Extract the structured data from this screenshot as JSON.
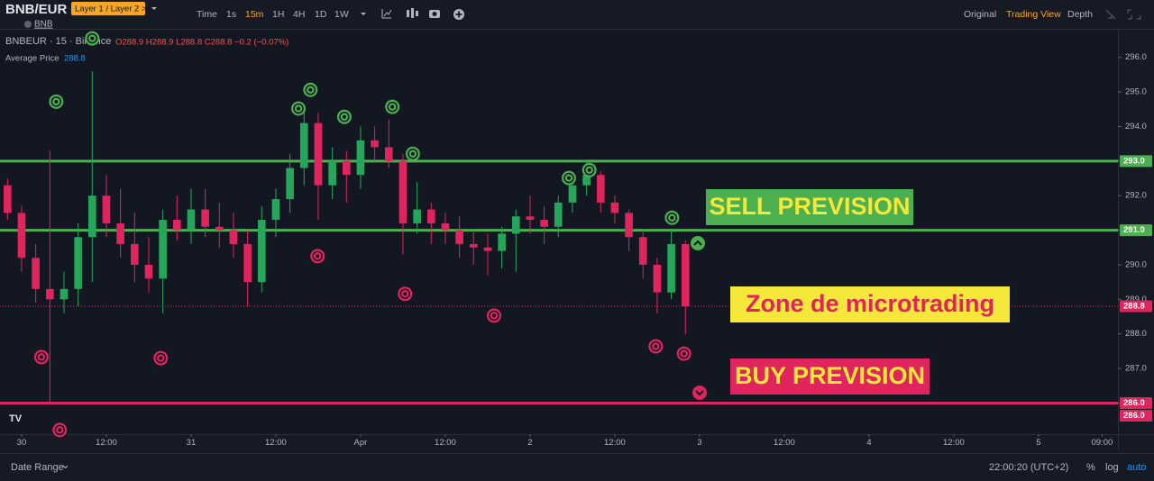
{
  "ui": {
    "symbol": "BNB/EUR",
    "layer": "Layer 1 / Layer 2 >",
    "timeframes": [
      "Time",
      "1s",
      "15m",
      "1H",
      "4H",
      "1D",
      "1W"
    ],
    "views": [
      "Original",
      "Trading View",
      "Depth"
    ],
    "legend": {
      "base": "BNB",
      "pair": "BNBEUR · 15 · Binance",
      "ohlc": "O288.9 H288.9 L288.8 C288.8 −0.2 (−0.07%)",
      "avg_label": "Average Price",
      "avg_value": "288.8"
    },
    "bottom": {
      "range": "Date Range",
      "clock": "22:00:20 (UTC+2)",
      "percent": "%",
      "log": "log",
      "auto": "auto"
    }
  },
  "chart_data": {
    "type": "candlestick",
    "up_color": "#26a65b",
    "down_color": "#e0245e",
    "x": [
      -2,
      0,
      2,
      4,
      6,
      8,
      10,
      12,
      14,
      16,
      18,
      20,
      22,
      24,
      26,
      28,
      30,
      32,
      34,
      36,
      38,
      40,
      42,
      44,
      46,
      48,
      50,
      52,
      54,
      56,
      58,
      60,
      62,
      64,
      66,
      68,
      70,
      72,
      74,
      76,
      78,
      80,
      82,
      84,
      86,
      88,
      90,
      92,
      94
    ],
    "open": [
      292.3,
      291.5,
      290.2,
      289.3,
      289.0,
      289.3,
      290.8,
      292.0,
      291.2,
      290.6,
      290.0,
      289.6,
      291.3,
      291.0,
      291.6,
      291.1,
      291.0,
      290.6,
      289.5,
      291.3,
      291.9,
      292.8,
      294.1,
      292.3,
      293.0,
      292.6,
      293.6,
      293.4,
      293.0,
      291.2,
      291.6,
      291.2,
      291.0,
      290.6,
      290.5,
      290.4,
      290.9,
      291.4,
      291.3,
      291.1,
      291.8,
      292.3,
      292.6,
      291.8,
      291.5,
      290.8,
      290.0,
      289.2,
      290.6
    ],
    "high": [
      292.5,
      291.7,
      290.6,
      293.3,
      289.8,
      291.2,
      295.6,
      292.6,
      292.2,
      291.5,
      290.8,
      291.6,
      292.0,
      292.2,
      292.2,
      291.8,
      291.5,
      291.0,
      291.7,
      292.2,
      293.2,
      294.6,
      294.4,
      293.4,
      293.3,
      294.0,
      294.0,
      294.2,
      293.2,
      292.4,
      291.8,
      291.5,
      291.4,
      291.0,
      290.9,
      291.1,
      291.6,
      292.0,
      291.7,
      292.0,
      292.6,
      293.0,
      292.7,
      292.0,
      291.6,
      291.0,
      290.2,
      291.0,
      290.7
    ],
    "low": [
      291.3,
      289.8,
      288.9,
      286.0,
      288.6,
      288.8,
      289.5,
      290.8,
      290.2,
      289.5,
      289.2,
      288.6,
      290.7,
      290.6,
      290.8,
      290.5,
      290.2,
      288.8,
      289.2,
      290.8,
      291.5,
      292.3,
      291.3,
      291.9,
      291.8,
      292.2,
      293.0,
      292.8,
      290.3,
      290.9,
      290.6,
      290.6,
      290.2,
      290.0,
      289.7,
      289.9,
      289.8,
      290.9,
      290.6,
      290.8,
      291.5,
      292.0,
      291.5,
      291.2,
      290.4,
      289.6,
      288.6,
      289.0,
      288.0
    ],
    "close": [
      291.5,
      290.2,
      289.3,
      289.0,
      289.3,
      290.8,
      292.0,
      291.2,
      290.6,
      290.0,
      289.6,
      291.3,
      291.0,
      291.6,
      291.1,
      291.0,
      290.6,
      289.5,
      291.3,
      291.9,
      292.8,
      294.1,
      292.3,
      293.0,
      292.6,
      293.6,
      293.4,
      293.0,
      291.2,
      291.6,
      291.2,
      291.0,
      290.6,
      290.5,
      290.4,
      290.9,
      291.4,
      291.3,
      291.1,
      291.8,
      292.3,
      292.6,
      291.8,
      291.5,
      290.8,
      290.0,
      289.2,
      290.6,
      288.8
    ],
    "xlim": [
      -3.06,
      155.25
    ],
    "ylim": [
      285.1,
      296.8
    ],
    "xticks": [
      {
        "value": 0,
        "label": "30"
      },
      {
        "value": 12,
        "label": "12:00"
      },
      {
        "value": 24,
        "label": "31"
      },
      {
        "value": 36,
        "label": "12:00"
      },
      {
        "value": 48,
        "label": "Apr"
      },
      {
        "value": 60,
        "label": "12:00"
      },
      {
        "value": 72,
        "label": "2"
      },
      {
        "value": 84,
        "label": "12:00"
      },
      {
        "value": 96,
        "label": "3"
      },
      {
        "value": 108,
        "label": "12:00"
      },
      {
        "value": 120,
        "label": "4"
      },
      {
        "value": 132,
        "label": "12:00"
      },
      {
        "value": 144,
        "label": "5"
      },
      {
        "value": 153,
        "label": "09:00"
      }
    ],
    "yticks": [
      {
        "value": 286,
        "label": "286.0"
      },
      {
        "value": 287,
        "label": "287.0"
      },
      {
        "value": 288,
        "label": "288.0"
      },
      {
        "value": 289,
        "label": "289.0"
      },
      {
        "value": 290,
        "label": "290.0"
      },
      {
        "value": 291,
        "label": "291.0"
      },
      {
        "value": 292,
        "label": "292.0"
      },
      {
        "value": 293,
        "label": "293.0"
      },
      {
        "value": 294,
        "label": "294.0"
      },
      {
        "value": 295,
        "label": "295.0"
      },
      {
        "value": 296,
        "label": "296.0"
      }
    ],
    "hlines": [
      {
        "value": 293,
        "label": "293.0",
        "color": "#4caf50",
        "style": "solid"
      },
      {
        "value": 291,
        "label": "291.0",
        "color": "#4caf50",
        "style": "solid"
      },
      {
        "value": 288.8,
        "label": "288.8",
        "color": "#e0245e",
        "style": "dotted"
      },
      {
        "value": 286,
        "label": "286.0",
        "color": "#e0245e",
        "style": "solid"
      },
      {
        "value": 286,
        "label": "286.0",
        "color": "#e0245e",
        "style": "thin"
      }
    ],
    "signals": {
      "sell": {
        "color": "#4caf50",
        "x": [
          4.9,
          10.0,
          39.2,
          40.9,
          45.7,
          52.5,
          55.4,
          77.5,
          80.4,
          92.1
        ],
        "price": [
          294.72,
          296.55,
          294.52,
          295.06,
          294.28,
          294.57,
          293.21,
          292.51,
          292.74,
          291.36
        ]
      },
      "buy": {
        "color": "#e0245e",
        "x": [
          2.8,
          5.4,
          19.7,
          41.9,
          54.3,
          66.9,
          89.8,
          93.8
        ],
        "price": [
          287.33,
          285.22,
          287.3,
          290.25,
          289.16,
          288.53,
          287.64,
          287.43
        ]
      }
    },
    "annotations": [
      {
        "text": "SELL PREVISION",
        "bg": "#4caf50",
        "color": "#f5e83a"
      },
      {
        "text": "Zone de microtrading",
        "bg": "#f5e83a",
        "color": "#e0245e"
      },
      {
        "text": "BUY PREVISION",
        "bg": "#e0245e",
        "color": "#f5e83a"
      }
    ]
  }
}
